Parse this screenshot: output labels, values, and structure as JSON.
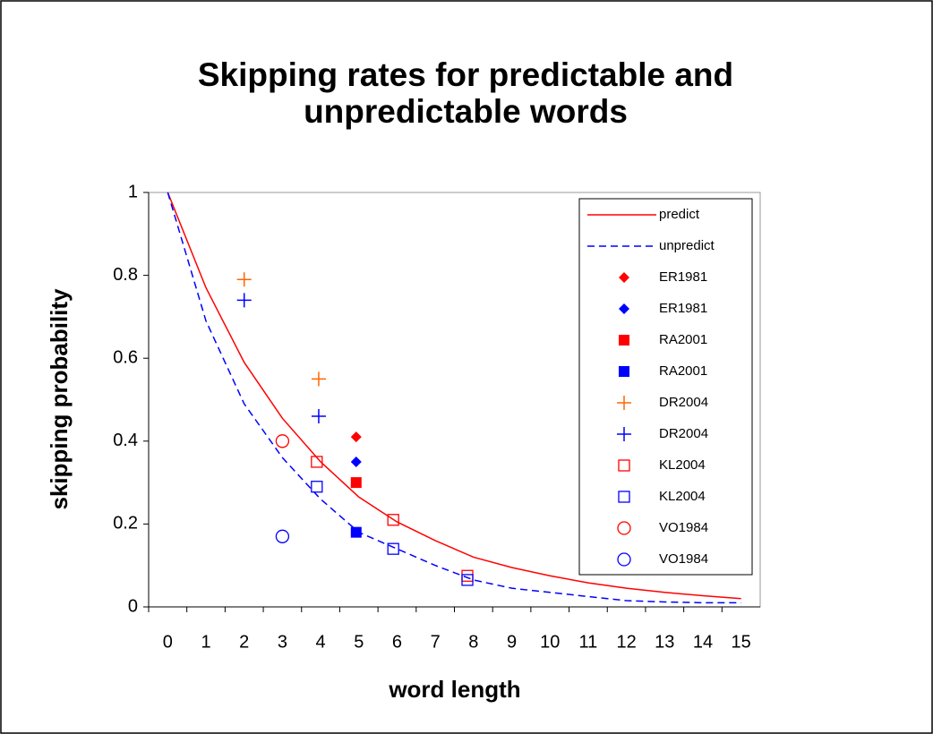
{
  "chart_data": {
    "type": "scatter",
    "title": [
      "Skipping rates for predictable and",
      "unpredictable words"
    ],
    "x_label": "word length",
    "y_label": "skipping probability",
    "xlim": [
      -0.5,
      15.5
    ],
    "xticks": [
      0,
      1,
      2,
      3,
      4,
      5,
      6,
      7,
      8,
      9,
      10,
      11,
      12,
      13,
      14,
      15
    ],
    "ylim": [
      0,
      1
    ],
    "yticks": [
      0,
      0.2,
      0.4,
      0.6,
      0.8,
      1
    ],
    "legend": "upper right",
    "series": [
      {
        "name": "predict",
        "color": "#ff0000",
        "line": "solid",
        "x": [
          0,
          1,
          2,
          3,
          4,
          5,
          6,
          7,
          8,
          9,
          10,
          11,
          12,
          13,
          14,
          15
        ],
        "values": [
          1.0,
          0.77,
          0.59,
          0.455,
          0.35,
          0.265,
          0.205,
          0.16,
          0.12,
          0.095,
          0.075,
          0.058,
          0.045,
          0.035,
          0.027,
          0.02
        ]
      },
      {
        "name": "unpredict",
        "color": "#0000ff",
        "line": "dashed",
        "x": [
          0,
          1,
          2,
          3,
          4,
          5,
          6,
          7,
          8,
          9,
          10,
          11,
          12,
          13,
          14,
          15
        ],
        "values": [
          1.0,
          0.69,
          0.49,
          0.36,
          0.26,
          0.18,
          0.14,
          0.1,
          0.065,
          0.045,
          0.035,
          0.025,
          0.015,
          0.012,
          0.01,
          0.01
        ]
      },
      {
        "name": "ER1981",
        "color": "#ff0000",
        "marker": "diamond",
        "x": [
          4.93
        ],
        "values": [
          0.41
        ]
      },
      {
        "name": "ER1981",
        "color": "#0000ff",
        "marker": "diamond",
        "x": [
          4.93
        ],
        "values": [
          0.35
        ]
      },
      {
        "name": "RA2001",
        "color": "#ff0000",
        "marker": "square",
        "x": [
          4.93
        ],
        "values": [
          0.3
        ]
      },
      {
        "name": "RA2001",
        "color": "#0000ff",
        "marker": "square",
        "x": [
          4.93
        ],
        "values": [
          0.18
        ]
      },
      {
        "name": "DR2004",
        "color": "#ff6600",
        "marker": "plus",
        "x": [
          2.0,
          3.95
        ],
        "values": [
          0.79,
          0.55
        ]
      },
      {
        "name": "DR2004",
        "color": "#0000ff",
        "marker": "plus",
        "x": [
          2.0,
          3.95
        ],
        "values": [
          0.74,
          0.46
        ]
      },
      {
        "name": "KL2004",
        "color": "#ff0000",
        "marker": "open-square",
        "x": [
          3.9,
          5.9,
          7.84
        ],
        "values": [
          0.35,
          0.21,
          0.075
        ]
      },
      {
        "name": "KL2004",
        "color": "#0000ff",
        "marker": "open-square",
        "x": [
          3.9,
          5.9,
          7.84
        ],
        "values": [
          0.29,
          0.14,
          0.065
        ]
      },
      {
        "name": "VO1984",
        "color": "#ff0000",
        "marker": "circle",
        "x": [
          3.0
        ],
        "values": [
          0.4
        ]
      },
      {
        "name": "VO1984",
        "color": "#0000ff",
        "marker": "circle",
        "x": [
          3.0
        ],
        "values": [
          0.17
        ]
      }
    ]
  }
}
